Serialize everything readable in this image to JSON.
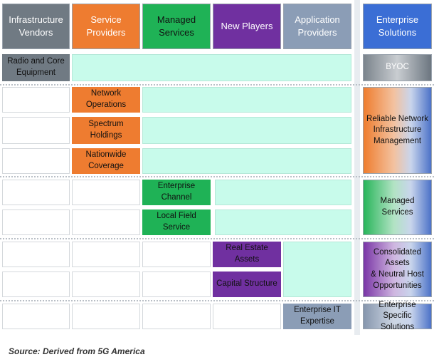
{
  "headers": {
    "infrastructure_vendors": "Infrastructure\nVendors",
    "service_providers": "Service\nProviders",
    "managed_services": "Managed Services",
    "new_players": "New Players",
    "application_providers": "Application\nProviders",
    "enterprise_solutions": "Enterprise\nSolutions"
  },
  "cells": {
    "radio_core": "Radio and Core\nEquipment",
    "network_operations": "Network Operations",
    "spectrum_holdings": "Spectrum Holdings",
    "nationwide_coverage": "Nationwide Coverage",
    "enterprise_channel": "Enterprise Channel",
    "local_field_service": "Local Field Service",
    "real_estate_assets": "Real Estate Assets",
    "capital_structure": "Capital Structure",
    "enterprise_it_expertise": "Enterprise IT\nExpertise"
  },
  "solutions": {
    "byoc": "BYOC",
    "reliable_network": "Reliable Network\nInfrastructure\nManagement",
    "managed_services": "Managed Services",
    "consolidated_assets": "Consolidated Assets\n& Neutral Host\nOpportunities",
    "enterprise_specific": "Enterprise Specific\nSolutions"
  },
  "source": "Source:  Derived from 5G America",
  "colors": {
    "infrastructure": "#707a83",
    "service": "#ee7c30",
    "managed": "#1fb256",
    "new_players": "#7030a0",
    "application": "#8b9db6",
    "enterprise": "#3b6ed5",
    "span": "#c8fbeb"
  }
}
